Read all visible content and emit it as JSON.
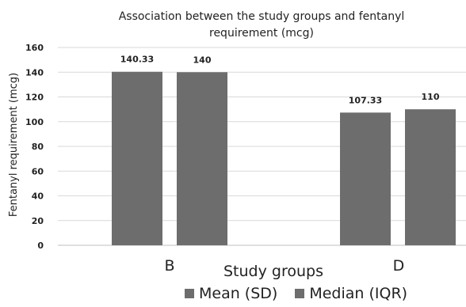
{
  "chart_data": {
    "type": "bar",
    "title": "Association between the study groups and fentanyl requirement (mcg)",
    "title_lines": [
      "Association between the study groups and fentanyl",
      "requirement (mcg)"
    ],
    "xlabel": "Study groups",
    "ylabel": "Fentanyl requirement (mcg)",
    "categories": [
      "B",
      "D"
    ],
    "series": [
      {
        "name": "Mean (SD)",
        "values": [
          140.33,
          107.33
        ],
        "labels": [
          "140.33",
          "107.33"
        ],
        "color": "#6d6d6d"
      },
      {
        "name": "Median (IQR)",
        "values": [
          140,
          110
        ],
        "labels": [
          "140",
          "110"
        ],
        "color": "#6d6d6d"
      }
    ],
    "ylim": [
      0,
      160
    ],
    "yticks": [
      0,
      20,
      40,
      60,
      80,
      100,
      120,
      140,
      160
    ],
    "grid": true,
    "legend_position": "bottom"
  }
}
